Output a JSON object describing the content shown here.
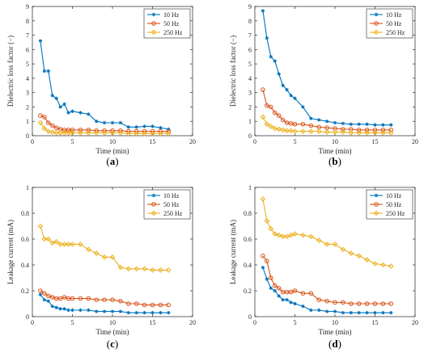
{
  "colors": {
    "s10": "#0072BD",
    "s50": "#D95319",
    "s250": "#EDB120",
    "axis": "#262626",
    "grid": "#e6e6e6"
  },
  "chart_data": [
    {
      "type": "line",
      "panel": "(a)",
      "caption": "a",
      "xlabel": "Time (min)",
      "ylabel": "Dielectric loss factor (−)",
      "xlim": [
        0,
        20
      ],
      "ylim": [
        0,
        9
      ],
      "xticks": [
        0,
        5,
        10,
        15,
        20
      ],
      "yticks": [
        0,
        1,
        2,
        3,
        4,
        5,
        6,
        7,
        8,
        9
      ],
      "legend": "top-right",
      "series": [
        {
          "name": "10 Hz",
          "color": "#0072BD",
          "marker": "asterisk",
          "x": [
            1,
            1.5,
            2,
            2.5,
            3,
            3.5,
            4,
            4.5,
            5,
            6,
            7,
            8,
            9,
            10,
            11,
            12,
            13,
            14,
            15,
            16,
            17
          ],
          "y": [
            6.6,
            4.5,
            4.5,
            2.8,
            2.6,
            2.0,
            2.2,
            1.6,
            1.7,
            1.6,
            1.5,
            1.0,
            0.9,
            0.9,
            0.9,
            0.6,
            0.6,
            0.65,
            0.65,
            0.55,
            0.45
          ]
        },
        {
          "name": "50 Hz",
          "color": "#D95319",
          "marker": "circle",
          "x": [
            1,
            1.5,
            2,
            2.5,
            3,
            3.5,
            4,
            4.5,
            5,
            6,
            7,
            8,
            9,
            10,
            11,
            12,
            13,
            14,
            15,
            16,
            17
          ],
          "y": [
            1.4,
            1.3,
            0.9,
            0.7,
            0.55,
            0.45,
            0.4,
            0.4,
            0.4,
            0.4,
            0.4,
            0.35,
            0.35,
            0.35,
            0.35,
            0.3,
            0.3,
            0.3,
            0.3,
            0.3,
            0.3
          ]
        },
        {
          "name": "250 Hz",
          "color": "#EDB120",
          "marker": "diamond",
          "x": [
            1,
            1.5,
            2,
            2.5,
            3,
            3.5,
            4,
            4.5,
            5,
            6,
            7,
            8,
            9,
            10,
            11,
            12,
            13,
            14,
            15,
            16,
            17
          ],
          "y": [
            0.9,
            0.5,
            0.3,
            0.25,
            0.2,
            0.2,
            0.2,
            0.2,
            0.2,
            0.2,
            0.2,
            0.2,
            0.2,
            0.2,
            0.2,
            0.15,
            0.15,
            0.15,
            0.15,
            0.15,
            0.15
          ]
        }
      ]
    },
    {
      "type": "line",
      "panel": "(b)",
      "caption": "b",
      "xlabel": "Time (min)",
      "ylabel": "Dielectric loss factor (−)",
      "xlim": [
        0,
        20
      ],
      "ylim": [
        0,
        9
      ],
      "xticks": [
        0,
        5,
        10,
        15,
        20
      ],
      "yticks": [
        0,
        1,
        2,
        3,
        4,
        5,
        6,
        7,
        8,
        9
      ],
      "legend": "top-right",
      "series": [
        {
          "name": "10 Hz",
          "color": "#0072BD",
          "marker": "asterisk",
          "x": [
            1,
            1.5,
            2,
            2.5,
            3,
            3.5,
            4,
            4.5,
            5,
            6,
            7,
            8,
            9,
            10,
            11,
            12,
            13,
            14,
            15,
            16,
            17
          ],
          "y": [
            8.7,
            6.8,
            5.5,
            5.2,
            4.3,
            3.5,
            3.2,
            2.8,
            2.6,
            2.0,
            1.2,
            1.1,
            1.0,
            0.9,
            0.85,
            0.8,
            0.8,
            0.8,
            0.75,
            0.75,
            0.75
          ]
        },
        {
          "name": "50 Hz",
          "color": "#D95319",
          "marker": "circle",
          "x": [
            1,
            1.5,
            2,
            2.5,
            3,
            3.5,
            4,
            4.5,
            5,
            6,
            7,
            8,
            9,
            10,
            11,
            12,
            13,
            14,
            15,
            16,
            17
          ],
          "y": [
            3.2,
            2.1,
            2.0,
            1.6,
            1.4,
            1.1,
            0.9,
            0.85,
            0.8,
            0.8,
            0.7,
            0.6,
            0.55,
            0.5,
            0.45,
            0.45,
            0.4,
            0.4,
            0.4,
            0.4,
            0.4
          ]
        },
        {
          "name": "250 Hz",
          "color": "#EDB120",
          "marker": "diamond",
          "x": [
            1,
            1.5,
            2,
            2.5,
            3,
            3.5,
            4,
            4.5,
            5,
            6,
            7,
            8,
            9,
            10,
            11,
            12,
            13,
            14,
            15,
            16,
            17
          ],
          "y": [
            1.3,
            0.8,
            0.65,
            0.5,
            0.45,
            0.4,
            0.35,
            0.35,
            0.3,
            0.3,
            0.3,
            0.3,
            0.25,
            0.25,
            0.25,
            0.2,
            0.2,
            0.2,
            0.2,
            0.2,
            0.2
          ]
        }
      ]
    },
    {
      "type": "line",
      "panel": "(c)",
      "caption": "c",
      "xlabel": "Time (min)",
      "ylabel": "Leakage current (mA)",
      "xlim": [
        0,
        20
      ],
      "ylim": [
        0,
        1
      ],
      "xticks": [
        0,
        5,
        10,
        15,
        20
      ],
      "yticks": [
        0,
        0.2,
        0.4,
        0.6,
        0.8,
        1
      ],
      "yticklabels": [
        "0",
        "0.2",
        "0.4",
        "0.6",
        "0.8",
        "1"
      ],
      "legend": "top-right",
      "series": [
        {
          "name": "10 Hz",
          "color": "#0072BD",
          "marker": "asterisk",
          "x": [
            1,
            1.5,
            2,
            2.5,
            3,
            3.5,
            4,
            4.5,
            5,
            6,
            7,
            8,
            9,
            10,
            11,
            12,
            13,
            14,
            15,
            16,
            17
          ],
          "y": [
            0.17,
            0.13,
            0.12,
            0.08,
            0.07,
            0.06,
            0.06,
            0.05,
            0.05,
            0.05,
            0.05,
            0.04,
            0.04,
            0.04,
            0.04,
            0.03,
            0.03,
            0.03,
            0.03,
            0.03,
            0.03
          ]
        },
        {
          "name": "50 Hz",
          "color": "#D95319",
          "marker": "circle",
          "x": [
            1,
            1.5,
            2,
            2.5,
            3,
            3.5,
            4,
            4.5,
            5,
            6,
            7,
            8,
            9,
            10,
            11,
            12,
            13,
            14,
            15,
            16,
            17
          ],
          "y": [
            0.2,
            0.18,
            0.16,
            0.15,
            0.14,
            0.14,
            0.15,
            0.14,
            0.14,
            0.14,
            0.14,
            0.13,
            0.13,
            0.13,
            0.12,
            0.1,
            0.1,
            0.09,
            0.09,
            0.09,
            0.09
          ]
        },
        {
          "name": "250 Hz",
          "color": "#EDB120",
          "marker": "diamond",
          "x": [
            1,
            1.5,
            2,
            2.5,
            3,
            3.5,
            4,
            4.5,
            5,
            6,
            7,
            8,
            9,
            10,
            11,
            12,
            13,
            14,
            15,
            16,
            17
          ],
          "y": [
            0.7,
            0.6,
            0.6,
            0.57,
            0.58,
            0.56,
            0.56,
            0.56,
            0.56,
            0.56,
            0.52,
            0.49,
            0.46,
            0.46,
            0.38,
            0.37,
            0.37,
            0.37,
            0.36,
            0.36,
            0.36
          ]
        }
      ]
    },
    {
      "type": "line",
      "panel": "(d)",
      "caption": "d",
      "xlabel": "Time (min)",
      "ylabel": "Leakage current (mA)",
      "xlim": [
        0,
        20
      ],
      "ylim": [
        0,
        1
      ],
      "xticks": [
        0,
        5,
        10,
        15,
        20
      ],
      "yticks": [
        0,
        0.2,
        0.4,
        0.6,
        0.8,
        1
      ],
      "yticklabels": [
        "0",
        "0.2",
        "0.4",
        "0.6",
        "0.8",
        "1"
      ],
      "legend": "top-right",
      "series": [
        {
          "name": "10 Hz",
          "color": "#0072BD",
          "marker": "asterisk",
          "x": [
            1,
            1.5,
            2,
            2.5,
            3,
            3.5,
            4,
            4.5,
            5,
            6,
            7,
            8,
            9,
            10,
            11,
            12,
            13,
            14,
            15,
            16,
            17
          ],
          "y": [
            0.38,
            0.29,
            0.22,
            0.2,
            0.16,
            0.13,
            0.13,
            0.11,
            0.1,
            0.08,
            0.05,
            0.05,
            0.04,
            0.04,
            0.03,
            0.03,
            0.03,
            0.03,
            0.03,
            0.03,
            0.03
          ]
        },
        {
          "name": "50 Hz",
          "color": "#D95319",
          "marker": "circle",
          "x": [
            1,
            1.5,
            2,
            2.5,
            3,
            3.5,
            4,
            4.5,
            5,
            6,
            7,
            8,
            9,
            10,
            11,
            12,
            13,
            14,
            15,
            16,
            17
          ],
          "y": [
            0.47,
            0.43,
            0.3,
            0.24,
            0.22,
            0.19,
            0.19,
            0.19,
            0.2,
            0.18,
            0.18,
            0.13,
            0.12,
            0.11,
            0.11,
            0.1,
            0.1,
            0.1,
            0.1,
            0.1,
            0.1
          ]
        },
        {
          "name": "250 Hz",
          "color": "#EDB120",
          "marker": "diamond",
          "x": [
            1,
            1.5,
            2,
            2.5,
            3,
            3.5,
            4,
            4.5,
            5,
            6,
            7,
            8,
            9,
            10,
            11,
            12,
            13,
            14,
            15,
            16,
            17
          ],
          "y": [
            0.91,
            0.74,
            0.68,
            0.64,
            0.63,
            0.62,
            0.62,
            0.63,
            0.64,
            0.63,
            0.62,
            0.59,
            0.56,
            0.56,
            0.52,
            0.49,
            0.47,
            0.44,
            0.41,
            0.4,
            0.39
          ]
        }
      ]
    }
  ]
}
